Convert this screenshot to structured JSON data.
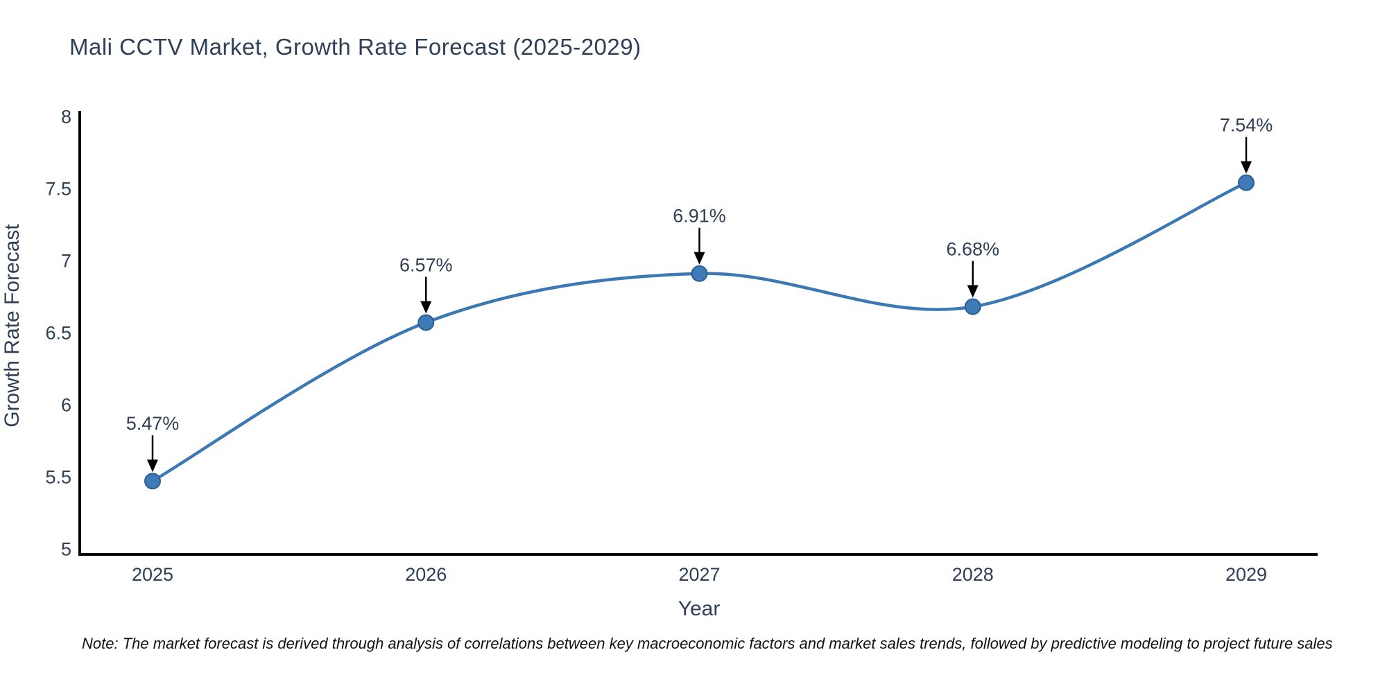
{
  "title": "Mali CCTV Market, Growth Rate Forecast (2025-2029)",
  "note": "Note: The market forecast is derived through analysis of correlations between key macroeconomic factors and market sales trends, followed by predictive modeling to project future sales",
  "chart_data": {
    "type": "line",
    "title": "Mali CCTV Market, Growth Rate Forecast (2025-2029)",
    "xlabel": "Year",
    "ylabel": "Growth Rate Forecast",
    "x": [
      2025,
      2026,
      2027,
      2028,
      2029
    ],
    "xtick_labels": [
      "2025",
      "2026",
      "2027",
      "2028",
      "2029"
    ],
    "series": [
      {
        "name": "Growth Rate Forecast",
        "values": [
          5.47,
          6.57,
          6.91,
          6.68,
          7.54
        ]
      }
    ],
    "point_labels": [
      "5.47%",
      "6.57%",
      "6.91%",
      "6.68%",
      "7.54%"
    ],
    "ylim": [
      5,
      8
    ],
    "yticks": [
      5,
      5.5,
      6,
      6.5,
      7,
      7.5,
      8
    ],
    "ytick_labels": [
      "5",
      "5.5",
      "6",
      "6.5",
      "7",
      "7.5",
      "8"
    ],
    "grid": false,
    "legend": "none",
    "line_style": "smooth-spline",
    "line_color": "#3c79b4",
    "marker_color": "#3d7ab7",
    "marker_edge_color": "#2b608f",
    "axis_color": "#000000",
    "arrow_color": "#000000",
    "text_color": "#2e3f57",
    "note_color": "#111111"
  }
}
